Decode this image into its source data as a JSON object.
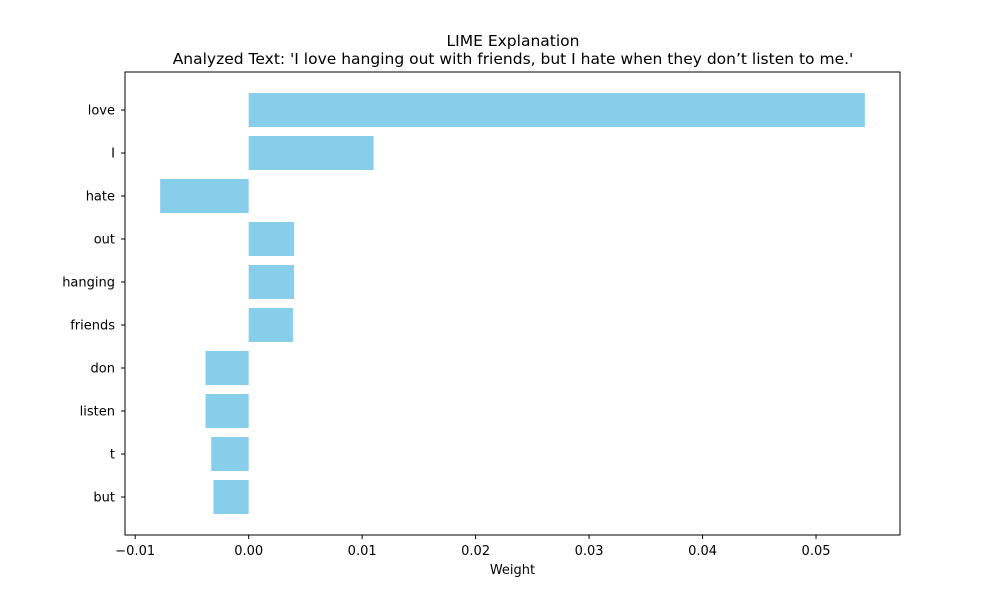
{
  "chart_data": {
    "type": "bar",
    "orientation": "horizontal",
    "title": "LIME Explanation",
    "subtitle": "Analyzed Text: 'I love hanging out with friends, but I hate when they don’t listen to me.'",
    "xlabel": "Weight",
    "ylabel": "",
    "categories": [
      "love",
      "I",
      "hate",
      "out",
      "hanging",
      "friends",
      "don",
      "listen",
      "t",
      "but"
    ],
    "values": [
      0.0543,
      0.011,
      -0.0078,
      0.004,
      0.004,
      0.0039,
      -0.0038,
      -0.0038,
      -0.0033,
      -0.0031
    ],
    "xlim": [
      -0.0109,
      0.0574
    ],
    "xticks": [
      -0.01,
      0.0,
      0.01,
      0.02,
      0.03,
      0.04,
      0.05
    ],
    "xtick_labels": [
      "−0.01",
      "0.00",
      "0.01",
      "0.02",
      "0.03",
      "0.04",
      "0.05"
    ],
    "bar_color": "#87ceeb",
    "grid": false,
    "legend": "none"
  }
}
